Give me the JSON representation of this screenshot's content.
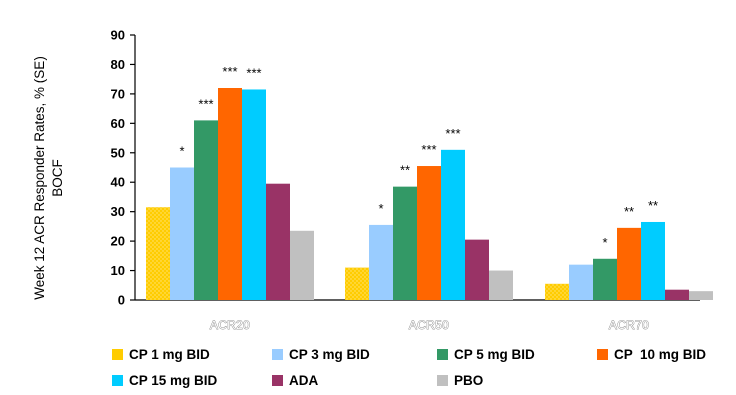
{
  "chart_data": {
    "type": "bar",
    "title": "",
    "ylabel_lines": [
      "Week 12 ACR Responder Rates, % (SE)",
      "BOCF"
    ],
    "xlabel": "",
    "ylim": [
      0,
      90
    ],
    "yticks": [
      0,
      10,
      20,
      30,
      40,
      50,
      60,
      70,
      80,
      90
    ],
    "ytick_labels": [
      "0",
      "10",
      "20",
      "30",
      "40",
      "50",
      "60",
      "70",
      "80",
      "90"
    ],
    "categories": [
      "ACR20",
      "ACR50",
      "ACR70"
    ],
    "series": [
      {
        "name": "CP 1 mg BID",
        "color": "#FFCC00",
        "values": [
          31.5,
          11,
          5.5
        ]
      },
      {
        "name": "CP 3 mg BID",
        "color": "#99CCFF",
        "values": [
          45,
          25.5,
          12
        ]
      },
      {
        "name": "CP 5 mg BID",
        "color": "#339966",
        "values": [
          61,
          38.5,
          14
        ]
      },
      {
        "name": "CP  10 mg BID",
        "color": "#FF6600",
        "values": [
          72,
          45.5,
          24.5
        ]
      },
      {
        "name": "CP 15 mg BID",
        "color": "#00CCFF",
        "values": [
          71.5,
          51,
          26.5
        ]
      },
      {
        "name": "ADA",
        "color": "#993366",
        "values": [
          39.5,
          20.5,
          3.5
        ]
      },
      {
        "name": "PBO",
        "color": "#C0C0C0",
        "values": [
          23.5,
          10,
          3
        ]
      }
    ],
    "annotations": [
      {
        "category": 0,
        "series": 1,
        "text": "*"
      },
      {
        "category": 0,
        "series": 2,
        "text": "***"
      },
      {
        "category": 0,
        "series": 3,
        "text": "***"
      },
      {
        "category": 0,
        "series": 4,
        "text": "***"
      },
      {
        "category": 1,
        "series": 1,
        "text": "*"
      },
      {
        "category": 1,
        "series": 2,
        "text": "**"
      },
      {
        "category": 1,
        "series": 3,
        "text": "***"
      },
      {
        "category": 1,
        "series": 4,
        "text": "***"
      },
      {
        "category": 2,
        "series": 2,
        "text": "*"
      },
      {
        "category": 2,
        "series": 3,
        "text": "**"
      },
      {
        "category": 2,
        "series": 4,
        "text": "**"
      }
    ],
    "legend_position": "bottom",
    "grid": false
  }
}
